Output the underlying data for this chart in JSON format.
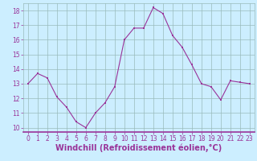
{
  "x": [
    0,
    1,
    2,
    3,
    4,
    5,
    6,
    7,
    8,
    9,
    10,
    11,
    12,
    13,
    14,
    15,
    16,
    17,
    18,
    19,
    20,
    21,
    22,
    23
  ],
  "y": [
    13,
    13.7,
    13.4,
    12.1,
    11.4,
    10.4,
    10.0,
    11.0,
    11.7,
    12.8,
    16.0,
    16.8,
    16.8,
    18.2,
    17.8,
    16.3,
    15.5,
    14.3,
    13.0,
    12.8,
    11.9,
    13.2,
    13.1,
    13.0
  ],
  "line_color": "#993399",
  "marker": "s",
  "marker_size": 2,
  "bg_color": "#cceeff",
  "grid_color": "#99bbbb",
  "xlabel": "Windchill (Refroidissement éolien,°C)",
  "xlabel_color": "#993399",
  "tick_color": "#993399",
  "axis_line_color": "#993399",
  "ylim": [
    9.7,
    18.5
  ],
  "xlim": [
    -0.5,
    23.5
  ],
  "yticks": [
    10,
    11,
    12,
    13,
    14,
    15,
    16,
    17,
    18
  ],
  "xticks": [
    0,
    1,
    2,
    3,
    4,
    5,
    6,
    7,
    8,
    9,
    10,
    11,
    12,
    13,
    14,
    15,
    16,
    17,
    18,
    19,
    20,
    21,
    22,
    23
  ],
  "tick_fontsize": 5.5,
  "xlabel_fontsize": 7.0
}
